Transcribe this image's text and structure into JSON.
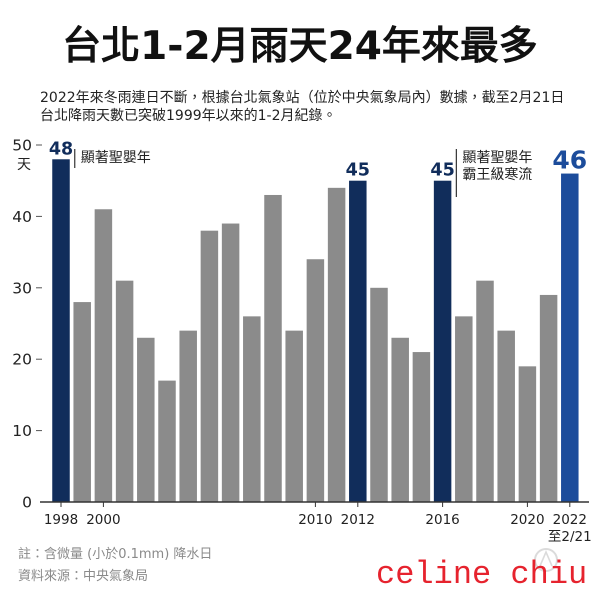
{
  "chart_data": {
    "type": "bar",
    "title": "台北1-2月雨天24年來最多",
    "subtitle_lines": [
      "2022年來冬雨連日不斷，根據台北氣象站（位於中央氣象局內）數據，截至2月21日",
      "台北降雨天數已突破1999年以來的1-2月紀錄。"
    ],
    "x": [
      1998,
      1999,
      2000,
      2001,
      2002,
      2003,
      2004,
      2005,
      2006,
      2007,
      2008,
      2009,
      2010,
      2011,
      2012,
      2013,
      2014,
      2015,
      2016,
      2017,
      2018,
      2019,
      2020,
      2021,
      2022
    ],
    "values": [
      48,
      28,
      41,
      31,
      23,
      17,
      24,
      38,
      39,
      26,
      43,
      24,
      34,
      44,
      45,
      30,
      23,
      21,
      45,
      26,
      31,
      24,
      19,
      29,
      46
    ],
    "x_ticks": [
      "1998",
      "2000",
      "2010",
      "2012",
      "2016",
      "2020",
      "2022"
    ],
    "x_tick_note": {
      "x": 2022,
      "text": "至2/21"
    },
    "ylabel": "天",
    "ylim": [
      0,
      50
    ],
    "yticks": [
      0,
      10,
      20,
      30,
      40,
      50
    ],
    "grid": false,
    "labeled_x": [
      1998,
      2012,
      2016,
      2022
    ],
    "highlight_x": [
      1998,
      2012,
      2016
    ],
    "current_x": 2022,
    "colors": {
      "default": "#8b8b8b",
      "highlight": "#112d5b",
      "current": "#1c4c9b"
    },
    "annotations": [
      {
        "x": 1998,
        "lines": [
          "顯著聖嬰年"
        ]
      },
      {
        "x": 2016,
        "lines": [
          "顯著聖嬰年",
          "霸王級寒流"
        ]
      }
    ]
  },
  "footer": {
    "note": "註：含微量 (小於0.1mm) 降水日",
    "source": "資料來源：中央氣象局"
  },
  "watermark": {
    "text": "celine chiu",
    "color": "#e6232e"
  }
}
